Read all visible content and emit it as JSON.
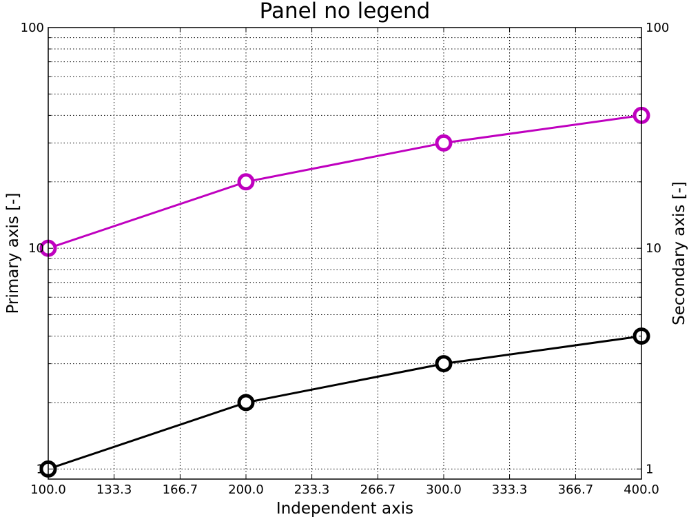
{
  "chart_data": {
    "type": "line",
    "title": "Panel no legend",
    "xlabel": "Independent axis",
    "ylabel": "Primary axis [-]",
    "y2label": "Secondary axis [-]",
    "xlim": [
      100,
      400
    ],
    "ylim": [
      0.9,
      100
    ],
    "yscale": "log",
    "grid": true,
    "legend": "none",
    "x_ticks": [
      "100.0",
      "133.3",
      "166.7",
      "200.0",
      "233.3",
      "266.7",
      "300.0",
      "333.3",
      "366.7",
      "400.0"
    ],
    "y_ticks": [
      "1",
      "10",
      "100"
    ],
    "y2_ticks": [
      "1",
      "10",
      "100"
    ],
    "series": [
      {
        "color": "#000000",
        "marker": "open-circle",
        "x": [
          100,
          200,
          300,
          400
        ],
        "values": [
          1,
          2,
          3,
          4
        ]
      },
      {
        "color": "#bf00bf",
        "marker": "open-circle",
        "x": [
          100,
          200,
          300,
          400
        ],
        "values": [
          10,
          20,
          30,
          40
        ]
      }
    ]
  }
}
